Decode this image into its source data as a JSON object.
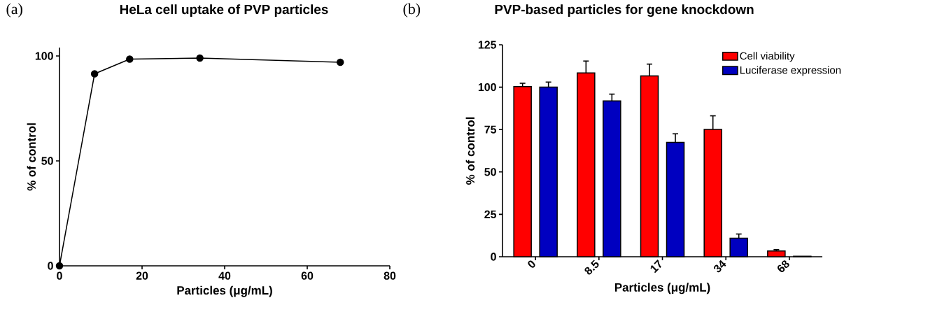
{
  "chart_data": [
    {
      "type": "line",
      "title": "HeLa cell uptake of PVP particles",
      "annotations": [
        "(a)"
      ],
      "xlabel": "Particles (μg/mL)",
      "ylabel": "% of control",
      "x": [
        0,
        8.5,
        17,
        34,
        68
      ],
      "values": [
        0,
        91.5,
        98.5,
        99,
        97
      ],
      "color": "#000000",
      "marker": "circle",
      "line_style": "solid",
      "xlim": [
        0,
        80
      ],
      "ylim": [
        0,
        104
      ],
      "xticks": [
        0,
        20,
        40,
        60,
        80
      ],
      "yticks": [
        0,
        50,
        100
      ]
    },
    {
      "type": "bar",
      "title": "PVP-based particles for gene knockdown",
      "annotations": [
        "(b)"
      ],
      "xlabel": "Particles (μg/mL)",
      "ylabel": "% of control",
      "categories": [
        "0",
        "8.5",
        "17",
        "34",
        "68"
      ],
      "series": [
        {
          "name": "Cell viability",
          "color": "#ff0000",
          "values": [
            100.3,
            108.4,
            106.6,
            75.1,
            3.4
          ],
          "errors": [
            2,
            7,
            7,
            8,
            0.8
          ]
        },
        {
          "name": "Luciferase expression",
          "color": "#0000c0",
          "values": [
            100,
            91.9,
            67.5,
            10.9,
            0.3
          ],
          "errors": [
            3,
            4,
            5,
            2.5,
            null
          ]
        }
      ],
      "ylim": [
        0,
        125
      ],
      "yticks": [
        0,
        25,
        50,
        75,
        100,
        125
      ],
      "legend": "top right"
    }
  ]
}
